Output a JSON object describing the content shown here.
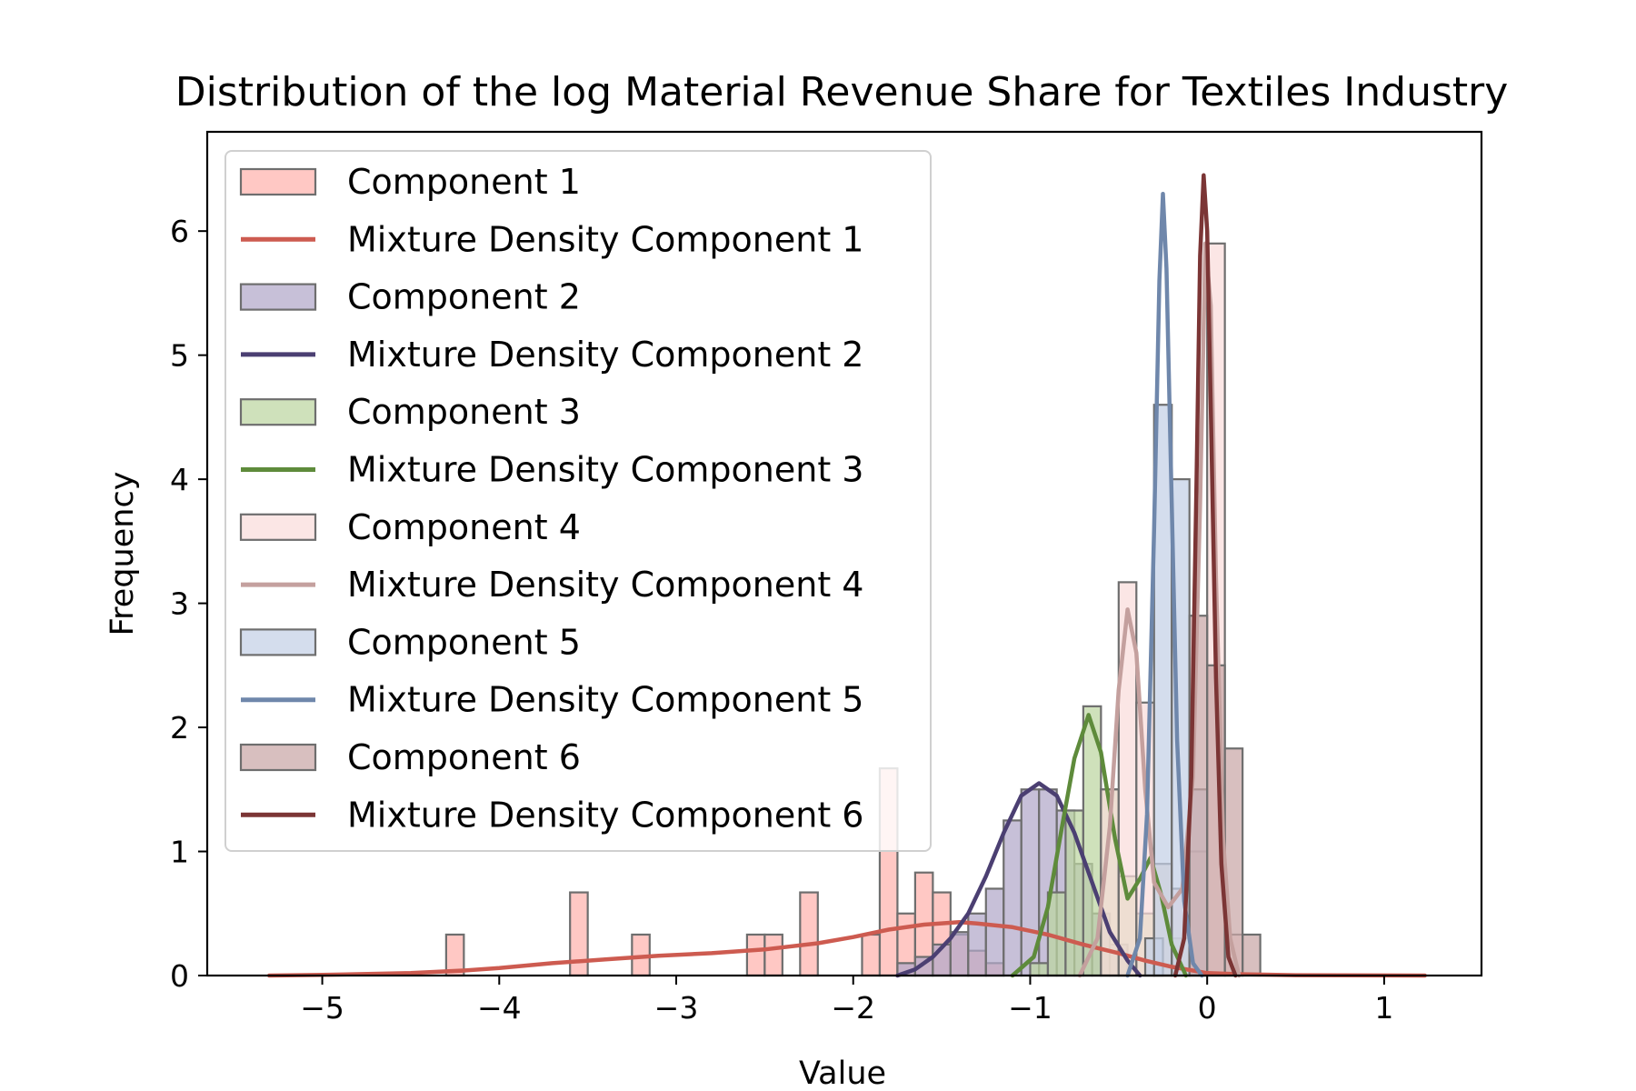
{
  "chart_data": {
    "type": "histogram+line",
    "title": "Distribution of the log Material Revenue Share for Textiles Industry",
    "xlabel": "Value",
    "ylabel": "Frequency",
    "xlim": [
      -5.65,
      1.55
    ],
    "ylim": [
      0,
      6.8
    ],
    "xticks": [
      {
        "value": -5,
        "label": "−5"
      },
      {
        "value": -4,
        "label": "−4"
      },
      {
        "value": -3,
        "label": "−3"
      },
      {
        "value": -2,
        "label": "−2"
      },
      {
        "value": -1,
        "label": "−1"
      },
      {
        "value": 0,
        "label": "0"
      },
      {
        "value": 1,
        "label": "1"
      }
    ],
    "yticks": [
      {
        "value": 0,
        "label": "0"
      },
      {
        "value": 1,
        "label": "1"
      },
      {
        "value": 2,
        "label": "2"
      },
      {
        "value": 3,
        "label": "3"
      },
      {
        "value": 4,
        "label": "4"
      },
      {
        "value": 5,
        "label": "5"
      },
      {
        "value": 6,
        "label": "6"
      }
    ],
    "grid": false,
    "legend_position": "upper-left",
    "bin_width": 0.1,
    "series": [
      {
        "name": "Component 1",
        "line_name": "Mixture Density Component 1",
        "fill_color": "#ffb3ad",
        "line_color": "#cd5b50",
        "bins": [
          [
            -4.3,
            0.33
          ],
          [
            -3.6,
            0.67
          ],
          [
            -3.25,
            0.33
          ],
          [
            -2.6,
            0.33
          ],
          [
            -2.5,
            0.33
          ],
          [
            -2.3,
            0.67
          ],
          [
            -1.95,
            0.33
          ],
          [
            -1.85,
            1.67
          ],
          [
            -1.75,
            0.5
          ],
          [
            -1.65,
            0.83
          ],
          [
            -1.55,
            0.67
          ],
          [
            -1.45,
            0.33
          ],
          [
            -1.35,
            0.2
          ],
          [
            -1.25,
            0.1
          ]
        ],
        "curve": [
          [
            -5.3,
            0.0
          ],
          [
            -5.0,
            0.005
          ],
          [
            -4.5,
            0.02
          ],
          [
            -4.2,
            0.04
          ],
          [
            -4.0,
            0.06
          ],
          [
            -3.7,
            0.1
          ],
          [
            -3.4,
            0.13
          ],
          [
            -3.1,
            0.16
          ],
          [
            -2.8,
            0.18
          ],
          [
            -2.5,
            0.21
          ],
          [
            -2.2,
            0.26
          ],
          [
            -2.0,
            0.31
          ],
          [
            -1.8,
            0.37
          ],
          [
            -1.6,
            0.41
          ],
          [
            -1.4,
            0.43
          ],
          [
            -1.3,
            0.42
          ],
          [
            -1.1,
            0.39
          ],
          [
            -0.9,
            0.33
          ],
          [
            -0.7,
            0.25
          ],
          [
            -0.5,
            0.18
          ],
          [
            -0.35,
            0.12
          ],
          [
            -0.2,
            0.07
          ],
          [
            0.0,
            0.02
          ],
          [
            0.2,
            0.01
          ],
          [
            0.5,
            0.003
          ],
          [
            1.23,
            0.0
          ]
        ]
      },
      {
        "name": "Component 2",
        "line_name": "Mixture Density Component 2",
        "fill_color": "#b2a7c9",
        "line_color": "#4b3f72",
        "bins": [
          [
            -1.75,
            0.1
          ],
          [
            -1.65,
            0.15
          ],
          [
            -1.55,
            0.25
          ],
          [
            -1.45,
            0.35
          ],
          [
            -1.35,
            0.5
          ],
          [
            -1.25,
            0.7
          ],
          [
            -1.15,
            1.25
          ],
          [
            -1.05,
            1.5
          ],
          [
            -0.95,
            1.5
          ],
          [
            -0.85,
            1.33
          ],
          [
            -0.75,
            0.9
          ],
          [
            -0.65,
            0.5
          ],
          [
            -0.55,
            0.25
          ]
        ],
        "curve": [
          [
            -1.75,
            0.0
          ],
          [
            -1.65,
            0.05
          ],
          [
            -1.55,
            0.15
          ],
          [
            -1.45,
            0.3
          ],
          [
            -1.35,
            0.5
          ],
          [
            -1.25,
            0.8
          ],
          [
            -1.15,
            1.15
          ],
          [
            -1.05,
            1.45
          ],
          [
            -0.95,
            1.55
          ],
          [
            -0.85,
            1.45
          ],
          [
            -0.75,
            1.15
          ],
          [
            -0.65,
            0.75
          ],
          [
            -0.55,
            0.35
          ],
          [
            -0.45,
            0.12
          ],
          [
            -0.38,
            0.0
          ]
        ]
      },
      {
        "name": "Component 3",
        "line_name": "Mixture Density Component 3",
        "fill_color": "#bdd6a1",
        "line_color": "#5e8b3b",
        "bins": [
          [
            -1.0,
            0.1
          ],
          [
            -0.9,
            0.67
          ],
          [
            -0.8,
            1.33
          ],
          [
            -0.7,
            2.17
          ],
          [
            -0.6,
            1.5
          ],
          [
            -0.5,
            0.8
          ],
          [
            -0.4,
            0.5
          ],
          [
            -0.3,
            0.9
          ],
          [
            -0.2,
            0.3
          ]
        ],
        "curve": [
          [
            -1.1,
            0.0
          ],
          [
            -0.98,
            0.15
          ],
          [
            -0.9,
            0.55
          ],
          [
            -0.82,
            1.2
          ],
          [
            -0.75,
            1.75
          ],
          [
            -0.67,
            2.1
          ],
          [
            -0.6,
            1.8
          ],
          [
            -0.52,
            1.1
          ],
          [
            -0.45,
            0.62
          ],
          [
            -0.38,
            0.78
          ],
          [
            -0.32,
            0.95
          ],
          [
            -0.26,
            0.65
          ],
          [
            -0.2,
            0.25
          ],
          [
            -0.12,
            0.0
          ]
        ]
      },
      {
        "name": "Component 4",
        "line_name": "Mixture Density Component 4",
        "fill_color": "#f9dddb",
        "line_color": "#c4a09e",
        "bins": [
          [
            -0.6,
            1.5
          ],
          [
            -0.5,
            3.17
          ],
          [
            -0.4,
            2.2
          ],
          [
            -0.3,
            0.9
          ],
          [
            -0.2,
            0.7
          ],
          [
            -0.1,
            1.0
          ],
          [
            0.0,
            5.9
          ],
          [
            0.1,
            0.33
          ]
        ],
        "curve": [
          [
            -0.72,
            0.0
          ],
          [
            -0.62,
            0.3
          ],
          [
            -0.55,
            1.2
          ],
          [
            -0.5,
            2.3
          ],
          [
            -0.45,
            2.95
          ],
          [
            -0.4,
            2.6
          ],
          [
            -0.35,
            1.5
          ],
          [
            -0.3,
            0.75
          ],
          [
            -0.22,
            0.55
          ],
          [
            -0.14,
            0.7
          ],
          [
            -0.08,
            1.6
          ],
          [
            -0.04,
            3.8
          ],
          [
            -0.01,
            5.9
          ],
          [
            0.02,
            5.4
          ],
          [
            0.05,
            3.2
          ],
          [
            0.09,
            1.1
          ],
          [
            0.13,
            0.3
          ],
          [
            0.18,
            0.0
          ]
        ]
      },
      {
        "name": "Component 5",
        "line_name": "Mixture Density Component 5",
        "fill_color": "#c4d0e6",
        "line_color": "#6f87ab",
        "bins": [
          [
            -0.35,
            0.3
          ],
          [
            -0.3,
            4.6
          ],
          [
            -0.2,
            4.0
          ],
          [
            -0.1,
            1.5
          ]
        ],
        "curve": [
          [
            -0.45,
            0.0
          ],
          [
            -0.38,
            0.3
          ],
          [
            -0.34,
            1.3
          ],
          [
            -0.3,
            3.6
          ],
          [
            -0.27,
            5.6
          ],
          [
            -0.25,
            6.3
          ],
          [
            -0.23,
            5.7
          ],
          [
            -0.2,
            3.8
          ],
          [
            -0.17,
            1.9
          ],
          [
            -0.13,
            0.6
          ],
          [
            -0.08,
            0.1
          ],
          [
            -0.03,
            0.0
          ]
        ]
      },
      {
        "name": "Component 6",
        "line_name": "Mixture Density Component 6",
        "fill_color": "#c9a6a6",
        "line_color": "#7b3535",
        "bins": [
          [
            -0.1,
            2.9
          ],
          [
            0.0,
            2.5
          ],
          [
            0.1,
            1.83
          ],
          [
            0.2,
            0.33
          ]
        ],
        "curve": [
          [
            -0.18,
            0.0
          ],
          [
            -0.13,
            0.3
          ],
          [
            -0.09,
            1.6
          ],
          [
            -0.06,
            4.0
          ],
          [
            -0.04,
            5.8
          ],
          [
            -0.02,
            6.45
          ],
          [
            0.0,
            6.0
          ],
          [
            0.02,
            4.6
          ],
          [
            0.05,
            2.4
          ],
          [
            0.08,
            0.9
          ],
          [
            0.12,
            0.15
          ],
          [
            0.16,
            0.0
          ]
        ]
      }
    ]
  }
}
